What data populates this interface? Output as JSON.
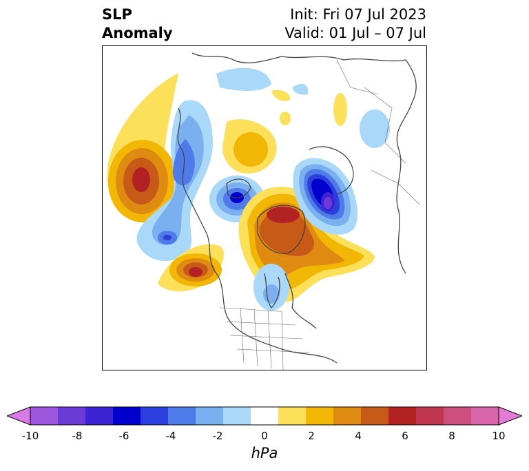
{
  "title": {
    "left_line1": "SLP",
    "left_line2": "Anomaly",
    "right_line1": "Init: Fri 07 Jul 2023",
    "right_line2": "Valid: 01 Jul – 07 Jul"
  },
  "colorbar": {
    "unit": "hPa",
    "tick_labels": [
      "-10",
      "-8",
      "-6",
      "-4",
      "-2",
      "0",
      "2",
      "4",
      "6",
      "8",
      "10"
    ],
    "levels": [
      -10,
      -9,
      -8,
      -7,
      -6,
      -5,
      -4,
      -3,
      -2,
      -1,
      1,
      2,
      3,
      4,
      5,
      6,
      7,
      8,
      9,
      10
    ],
    "colors": [
      "#d97ae8",
      "#9d56de",
      "#6b3bd6",
      "#3d22d2",
      "#0000cc",
      "#2a3fdc",
      "#4f7be8",
      "#7bb0f0",
      "#a9d8f8",
      "#ffffff",
      "#fde05a",
      "#f2b705",
      "#df8a10",
      "#c85a18",
      "#b22222",
      "#c0364e",
      "#cc4f7e",
      "#d966aa",
      "#e47bd6"
    ]
  },
  "map": {
    "projection": "north-polar-stereographic",
    "anomaly_features": [
      {
        "name": "Pacific high",
        "sign": "positive",
        "peak_hpa": 7
      },
      {
        "name": "NW Canada low",
        "sign": "negative",
        "peak_hpa": -5
      },
      {
        "name": "Greenland/Arctic high",
        "sign": "positive",
        "peak_hpa": 6
      },
      {
        "name": "Pacific NW high",
        "sign": "positive",
        "peak_hpa": 7
      },
      {
        "name": "Scandinavia/Barents low",
        "sign": "negative",
        "peak_hpa": -8
      },
      {
        "name": "Siberia high",
        "sign": "positive",
        "peak_hpa": 3
      }
    ]
  }
}
